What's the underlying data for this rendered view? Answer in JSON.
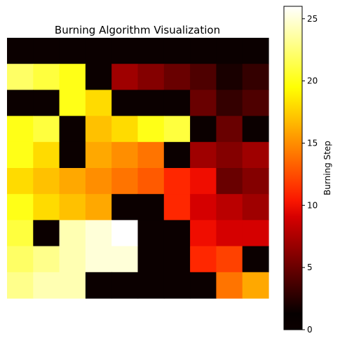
{
  "chart_data": {
    "type": "heatmap",
    "title": "Burning Algorithm Visualization",
    "colorbar": {
      "label": "Burning Step",
      "range": [
        0,
        26
      ],
      "ticks": [
        0,
        5,
        10,
        15,
        20,
        25
      ],
      "colormap": "hot"
    },
    "axes_visible": false,
    "rows": 10,
    "cols": 10,
    "values": [
      [
        1,
        1,
        0,
        1,
        1,
        1,
        1,
        1,
        1,
        0
      ],
      [
        22,
        21,
        20,
        0,
        7,
        6,
        5,
        4,
        2,
        3
      ],
      [
        0,
        0,
        20,
        18,
        0,
        0,
        0,
        5,
        3,
        4
      ],
      [
        20,
        21,
        0,
        17,
        18,
        20,
        21,
        0,
        5,
        0
      ],
      [
        20,
        18,
        0,
        16,
        15,
        14,
        0,
        7,
        6,
        7
      ],
      [
        18,
        17,
        16,
        15,
        14,
        13,
        11,
        10,
        5,
        6
      ],
      [
        20,
        18,
        17,
        16,
        0,
        0,
        11,
        9,
        8,
        7
      ],
      [
        21,
        0,
        24,
        25,
        26,
        0,
        0,
        10,
        9,
        9
      ],
      [
        22,
        23,
        24,
        25,
        25,
        0,
        0,
        11,
        12,
        0
      ],
      [
        23,
        24,
        24,
        0,
        0,
        0,
        0,
        0,
        14,
        16
      ]
    ]
  }
}
